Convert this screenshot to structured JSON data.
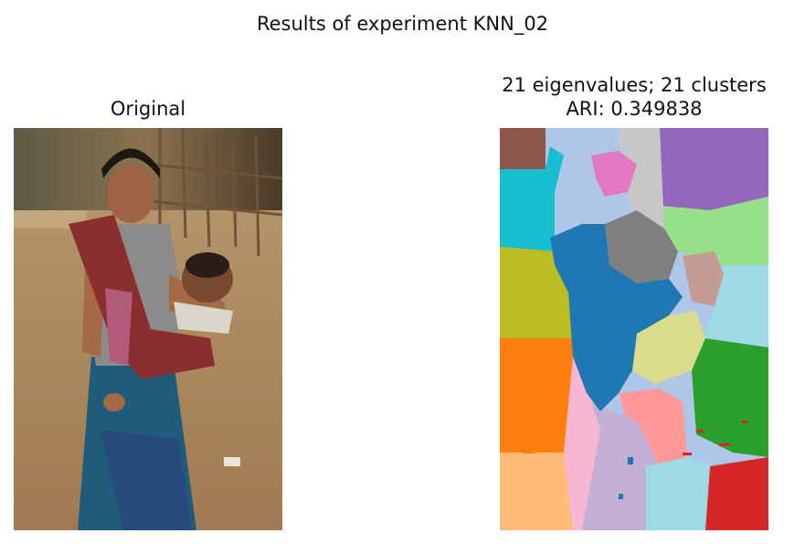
{
  "figure": {
    "suptitle": "Results of experiment KNN_02"
  },
  "left_panel": {
    "title": "Original",
    "image_subject": "photo-woman-carrying-baby"
  },
  "right_panel": {
    "title_line1": "21 eigenvalues; 21 clusters",
    "title_line2": "ARI: 0.349838",
    "image_subject": "segmentation-map"
  },
  "colors": {
    "tab_blue": "#1f77b4",
    "tab_orange": "#ff7f0e",
    "tab_green": "#2ca02c",
    "tab_red": "#d62728",
    "tab_purple": "#9467bd",
    "tab_brown": "#8c564b",
    "tab_pink": "#e377c2",
    "tab_gray": "#7f7f7f",
    "tab_olive": "#bcbd22",
    "tab_cyan": "#17becf",
    "light_blue": "#aec7e8",
    "light_orange": "#ffbb78",
    "light_green": "#98df8a",
    "light_red": "#ff9896",
    "light_purple": "#c5b0d5",
    "light_brown": "#c49c94",
    "light_pink": "#f7b6d2",
    "light_gray": "#c7c7c7",
    "light_olive": "#dbdb8d",
    "light_cyan": "#9edae5"
  }
}
